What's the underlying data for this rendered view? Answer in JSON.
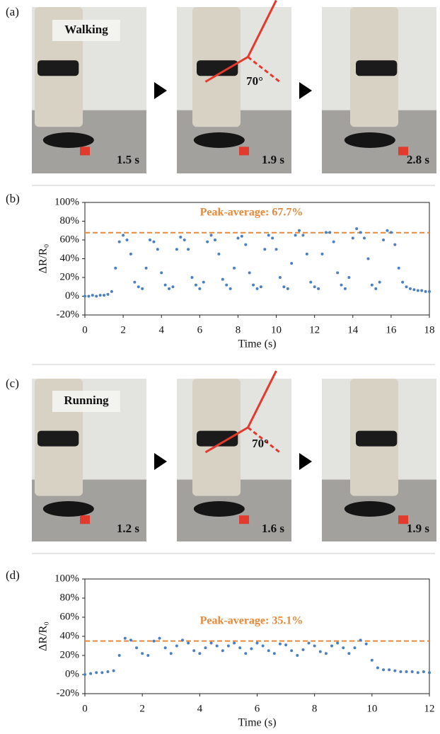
{
  "panels": {
    "a": {
      "label": "(a)",
      "title": "Walking",
      "frames": [
        {
          "time": "1.5 s"
        },
        {
          "time": "1.9 s",
          "angle": "70°"
        },
        {
          "time": "2.8 s"
        }
      ]
    },
    "c": {
      "label": "(c)",
      "title": "Running",
      "frames": [
        {
          "time": "1.2 s"
        },
        {
          "time": "1.6 s",
          "angle": "70°"
        },
        {
          "time": "1.9 s"
        }
      ]
    }
  },
  "chart_data": [
    {
      "type": "scatter",
      "panel_label": "(b)",
      "x_label": "Time (s)",
      "y_label": "ΔR/R₀",
      "color": "#4a7fc1",
      "peak_average": 67.7,
      "annotation": "Peak-average: 67.7%",
      "peak_color": "#e8883a",
      "xlim": [
        0,
        18
      ],
      "xticks": [
        0,
        2,
        4,
        6,
        8,
        10,
        12,
        14,
        16,
        18
      ],
      "ylim": [
        -20,
        100
      ],
      "yticks": [
        {
          "value": -20,
          "label": "-20%"
        },
        {
          "value": 0,
          "label": "0%"
        },
        {
          "value": 20,
          "label": "20%"
        },
        {
          "value": 40,
          "label": "40%"
        },
        {
          "value": 60,
          "label": "60%"
        },
        {
          "value": 80,
          "label": "80%"
        },
        {
          "value": 100,
          "label": "100%"
        }
      ],
      "x": [
        0,
        0.2,
        0.4,
        0.6,
        0.8,
        1.0,
        1.2,
        1.4,
        1.6,
        1.8,
        2.0,
        2.2,
        2.4,
        2.6,
        2.8,
        3.0,
        3.2,
        3.4,
        3.6,
        3.8,
        4.0,
        4.2,
        4.4,
        4.6,
        4.8,
        5.0,
        5.2,
        5.4,
        5.6,
        5.8,
        6.0,
        6.2,
        6.4,
        6.6,
        6.8,
        7.0,
        7.2,
        7.4,
        7.6,
        7.8,
        8.0,
        8.2,
        8.4,
        8.6,
        8.8,
        9.0,
        9.2,
        9.4,
        9.6,
        9.8,
        10.0,
        10.2,
        10.4,
        10.6,
        10.8,
        11.0,
        11.2,
        11.4,
        11.6,
        11.8,
        12.0,
        12.2,
        12.4,
        12.6,
        12.8,
        13.0,
        13.2,
        13.4,
        13.6,
        13.8,
        14.0,
        14.2,
        14.4,
        14.6,
        14.8,
        15.0,
        15.2,
        15.4,
        15.6,
        15.8,
        16.0,
        16.2,
        16.4,
        16.6,
        16.8,
        17.0,
        17.2,
        17.4,
        17.6,
        17.8,
        18.0
      ],
      "values": [
        0,
        0,
        1,
        0,
        1,
        1,
        2,
        5,
        30,
        58,
        65,
        60,
        45,
        15,
        10,
        8,
        30,
        60,
        58,
        50,
        25,
        12,
        8,
        10,
        50,
        63,
        60,
        50,
        20,
        12,
        8,
        15,
        58,
        65,
        60,
        45,
        18,
        12,
        8,
        30,
        62,
        64,
        55,
        25,
        12,
        8,
        10,
        50,
        65,
        62,
        50,
        20,
        10,
        8,
        35,
        65,
        70,
        65,
        45,
        15,
        10,
        8,
        45,
        68,
        68,
        58,
        25,
        12,
        8,
        20,
        62,
        72,
        68,
        62,
        40,
        12,
        8,
        15,
        60,
        70,
        68,
        55,
        30,
        15,
        10,
        8,
        7,
        6,
        6,
        5,
        5
      ]
    },
    {
      "type": "scatter",
      "panel_label": "(d)",
      "x_label": "Time (s)",
      "y_label": "ΔR/R₀",
      "color": "#4a7fc1",
      "peak_average": 35.1,
      "annotation": "Peak-average: 35.1%",
      "peak_color": "#e8883a",
      "xlim": [
        0,
        12
      ],
      "xticks": [
        0,
        2,
        4,
        6,
        8,
        10,
        12
      ],
      "ylim": [
        -20,
        100
      ],
      "yticks": [
        {
          "value": -20,
          "label": "-20%"
        },
        {
          "value": 0,
          "label": "0%"
        },
        {
          "value": 20,
          "label": "20%"
        },
        {
          "value": 40,
          "label": "40%"
        },
        {
          "value": 60,
          "label": "60%"
        },
        {
          "value": 80,
          "label": "80%"
        },
        {
          "value": 100,
          "label": "100%"
        }
      ],
      "x": [
        0,
        0.2,
        0.4,
        0.6,
        0.8,
        1.0,
        1.2,
        1.4,
        1.6,
        1.8,
        2.0,
        2.2,
        2.4,
        2.6,
        2.8,
        3.0,
        3.2,
        3.4,
        3.6,
        3.8,
        4.0,
        4.2,
        4.4,
        4.6,
        4.8,
        5.0,
        5.2,
        5.4,
        5.6,
        5.8,
        6.0,
        6.2,
        6.4,
        6.6,
        6.8,
        7.0,
        7.2,
        7.4,
        7.6,
        7.8,
        8.0,
        8.2,
        8.4,
        8.6,
        8.8,
        9.0,
        9.2,
        9.4,
        9.6,
        9.8,
        10.0,
        10.2,
        10.4,
        10.6,
        10.8,
        11.0,
        11.2,
        11.4,
        11.6,
        11.8,
        12.0
      ],
      "values": [
        0,
        1,
        2,
        2,
        3,
        4,
        20,
        38,
        36,
        28,
        22,
        20,
        35,
        38,
        28,
        22,
        30,
        36,
        33,
        25,
        22,
        28,
        33,
        30,
        25,
        30,
        33,
        28,
        22,
        27,
        33,
        30,
        25,
        22,
        32,
        31,
        25,
        20,
        26,
        33,
        30,
        24,
        22,
        30,
        33,
        28,
        22,
        28,
        36,
        32,
        15,
        7,
        5,
        5,
        4,
        3,
        3,
        3,
        2,
        3,
        2
      ]
    }
  ]
}
